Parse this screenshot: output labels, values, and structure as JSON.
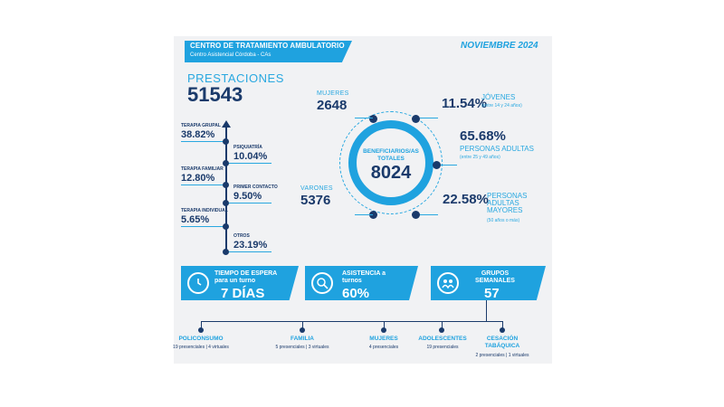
{
  "header": {
    "title": "CENTRO DE TRATAMIENTO AMBULATORIO",
    "subtitle": "Centro Asistencial Córdoba - CAs",
    "month": "NOVIEMBRE 2024"
  },
  "prestaciones": {
    "label": "PRESTACIONES",
    "value": "51543"
  },
  "timeline": [
    {
      "label": "TERAPIA GRUPAL",
      "value": "38.82%"
    },
    {
      "label": "PSIQUIATRÍA",
      "value": "10.04%"
    },
    {
      "label": "TERAPIA FAMILIAR",
      "value": "12.80%"
    },
    {
      "label": "PRIMER CONTACTO",
      "value": "9.50%"
    },
    {
      "label": "TERAPIA INDIVIDUAL",
      "value": "5.65%"
    },
    {
      "label": "OTROS",
      "value": "23.19%"
    }
  ],
  "beneficiarios": {
    "label": "BENEFICIARIOS/AS TOTALES",
    "value": "8024",
    "mujeres_label": "MUJERES",
    "mujeres_value": "2648",
    "varones_label": "VARONES",
    "varones_value": "5376"
  },
  "edades": [
    {
      "pct": "11.54%",
      "label": "JÓVENES",
      "note": "(entre 14 y 24 años)"
    },
    {
      "pct": "65.68%",
      "label": "PERSONAS ADULTAS",
      "note": "(entre 25 y 49 años)"
    },
    {
      "pct": "22.58%",
      "label": "PERSONAS ADULTAS MAYORES",
      "note": "(50 años o más)"
    }
  ],
  "boxes": {
    "espera_title": "TIEMPO DE ESPERA para un turno",
    "espera_value": "7 DÍAS",
    "asistencia_title": "ASISTENCIA a turnos",
    "asistencia_value": "60%",
    "grupos_title": "GRUPOS SEMANALES",
    "grupos_value": "57"
  },
  "grupos": [
    {
      "name": "POLICONSUMO",
      "note": "19 presenciales | 4 virtuales"
    },
    {
      "name": "FAMILIA",
      "note": "5 presenciales | 3 virtuales"
    },
    {
      "name": "MUJERES",
      "note": "4 presenciales"
    },
    {
      "name": "ADOLESCENTES",
      "note": "19 presenciales"
    },
    {
      "name": "CESACIÓN TABÁQUICA",
      "note": "2 presenciales | 1 virtuales"
    }
  ],
  "colors": {
    "accent": "#1fa2df",
    "navy": "#1a3a6b",
    "background": "#f1f2f4"
  }
}
